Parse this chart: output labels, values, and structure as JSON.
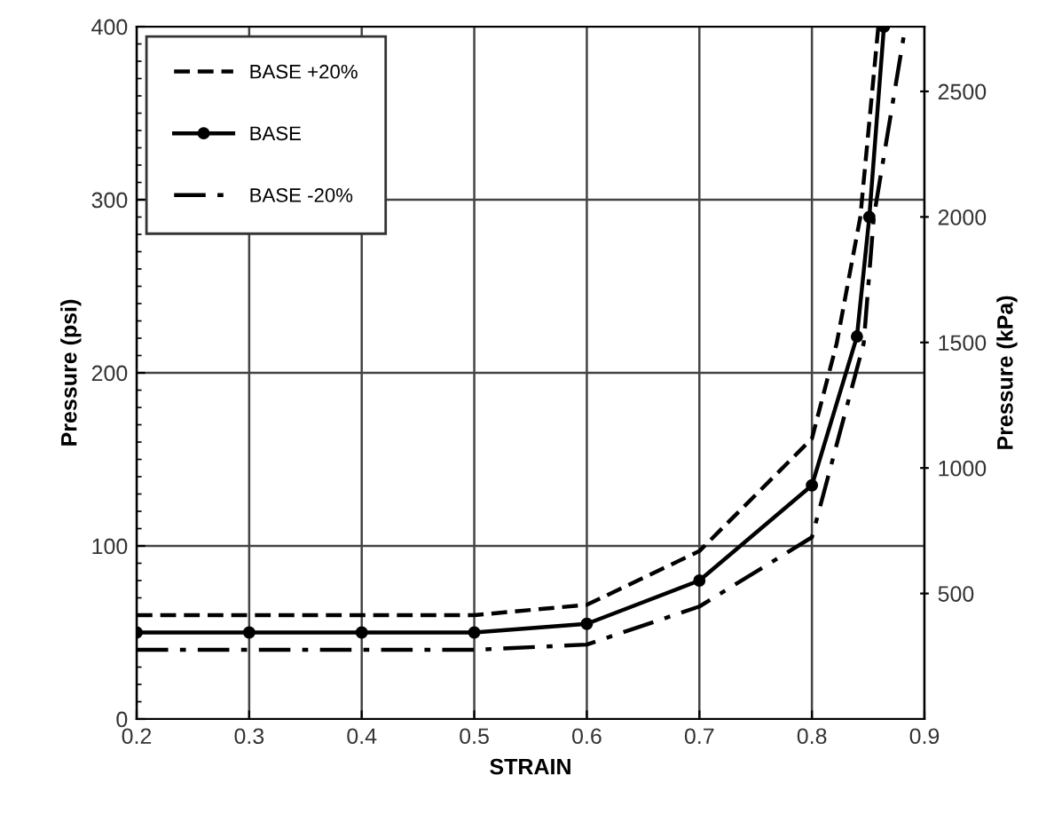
{
  "chart_data": {
    "type": "line",
    "xlabel": "STRAIN",
    "ylabel": "Pressure (psi)",
    "y2label": "Pressure (kPa)",
    "xlim": [
      0.2,
      0.9
    ],
    "xticks": [
      0.2,
      0.3,
      0.4,
      0.5,
      0.6,
      0.7,
      0.8,
      0.9
    ],
    "ylim": [
      0,
      400
    ],
    "yticks": [
      0,
      100,
      200,
      300,
      400
    ],
    "y2lim": [
      0,
      2758
    ],
    "y2ticks": [
      500,
      1000,
      1500,
      2000,
      2500
    ],
    "grid": true,
    "legend": "top left",
    "series": [
      {
        "name": "BASE +20%",
        "color": "#000000",
        "line_style": "dashed",
        "marker": "none",
        "x": [
          0.2,
          0.3,
          0.4,
          0.5,
          0.6,
          0.7,
          0.8,
          0.822,
          0.843,
          0.859
        ],
        "values": [
          60,
          60,
          60,
          60,
          66,
          97,
          162,
          217,
          290,
          400
        ]
      },
      {
        "name": "BASE",
        "color": "#000000",
        "line_style": "solid",
        "marker": "circle",
        "x": [
          0.2,
          0.3,
          0.4,
          0.5,
          0.6,
          0.7,
          0.8,
          0.84,
          0.851,
          0.864
        ],
        "values": [
          50,
          50,
          50,
          50,
          55,
          80,
          135,
          221,
          290,
          400
        ]
      },
      {
        "name": "BASE -20%",
        "color": "#000000",
        "line_style": "dashdot",
        "marker": "none",
        "x": [
          0.2,
          0.3,
          0.4,
          0.5,
          0.6,
          0.7,
          0.8,
          0.846,
          0.855,
          0.883
        ],
        "values": [
          40,
          40,
          40,
          40,
          43,
          65,
          105,
          217,
          290,
          400
        ]
      }
    ]
  }
}
